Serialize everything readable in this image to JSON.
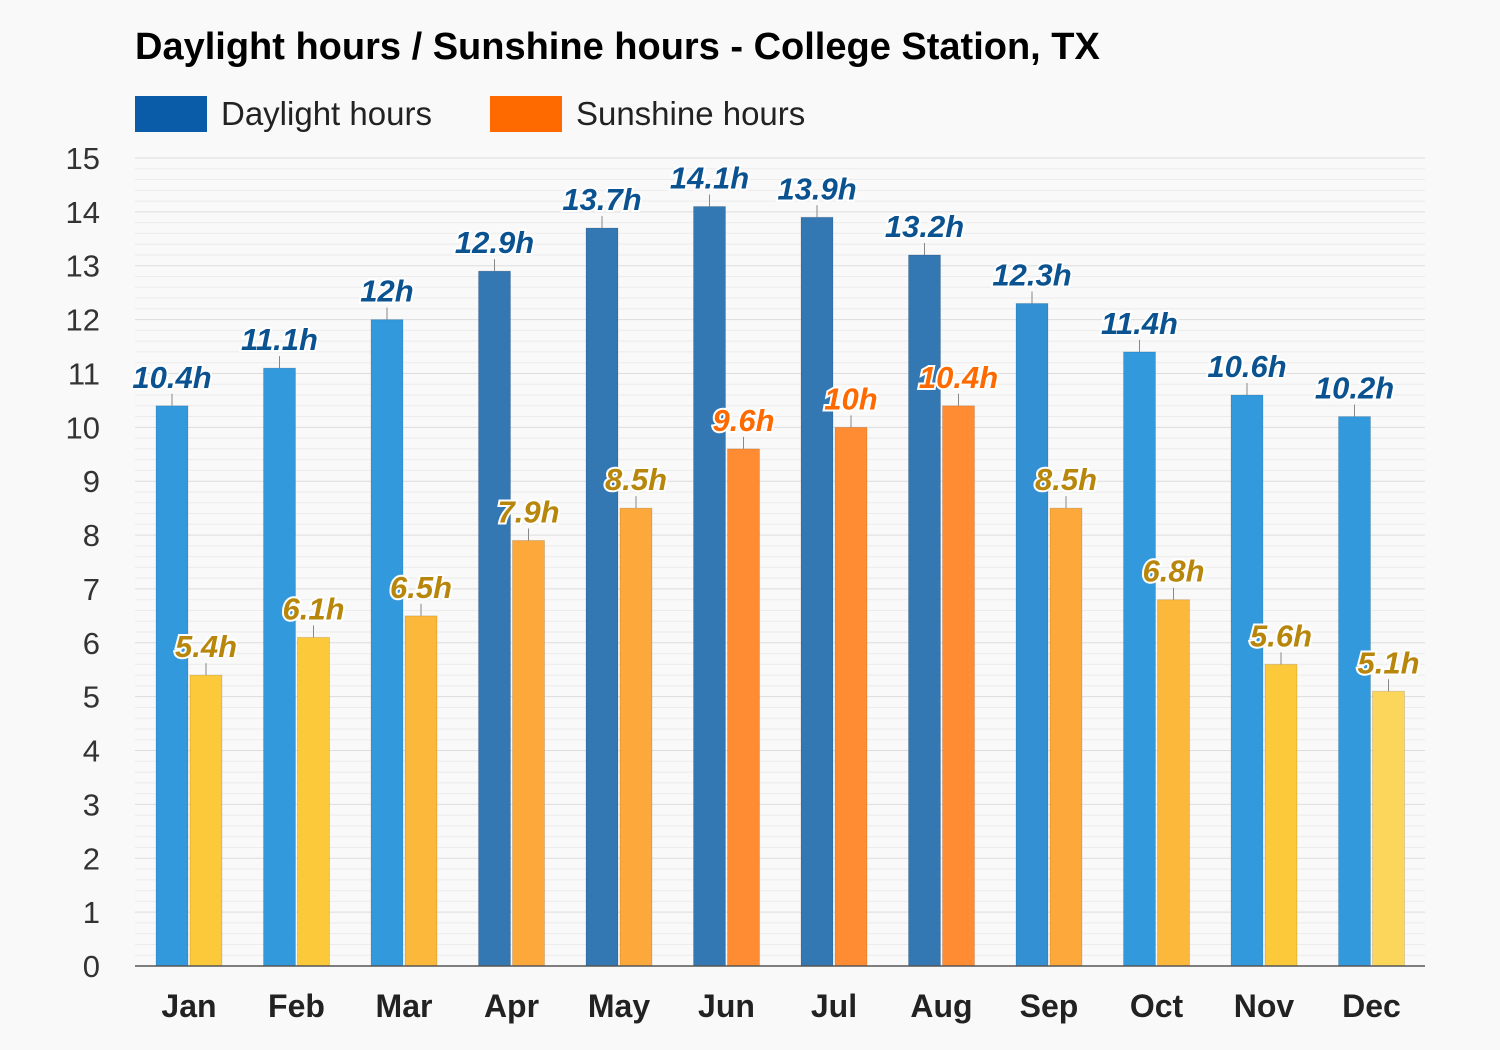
{
  "chart_data": {
    "type": "bar",
    "title": "Daylight hours / Sunshine hours - College Station, TX",
    "xlabel": "",
    "ylabel": "",
    "ylim": [
      0,
      15
    ],
    "yticks": [
      "0",
      "1",
      "2",
      "3",
      "4",
      "5",
      "6",
      "7",
      "8",
      "9",
      "10",
      "11",
      "12",
      "13",
      "14",
      "15"
    ],
    "grid": true,
    "legend_position": "top-left",
    "categories": [
      "Jan",
      "Feb",
      "Mar",
      "Apr",
      "May",
      "Jun",
      "Jul",
      "Aug",
      "Sep",
      "Oct",
      "Nov",
      "Dec"
    ],
    "series": [
      {
        "name": "Daylight hours",
        "legend_color": "#0a5ca8",
        "values": [
          10.4,
          11.1,
          12,
          12.9,
          13.7,
          14.1,
          13.9,
          13.2,
          12.3,
          11.4,
          10.6,
          10.2
        ],
        "labels": [
          "10.4h",
          "11.1h",
          "12h",
          "12.9h",
          "13.7h",
          "14.1h",
          "13.9h",
          "13.2h",
          "12.3h",
          "11.4h",
          "10.6h",
          "10.2h"
        ],
        "bar_colors": [
          "#3399dd",
          "#3399dd",
          "#3399dd",
          "#3377b3",
          "#3377b3",
          "#3377b3",
          "#3377b3",
          "#3377b3",
          "#3391d3",
          "#3399dd",
          "#3399dd",
          "#3399dd"
        ],
        "label_color": "#0a5390"
      },
      {
        "name": "Sunshine hours",
        "legend_color": "#ff6a00",
        "values": [
          5.4,
          6.1,
          6.5,
          7.9,
          8.5,
          9.6,
          10,
          10.4,
          8.5,
          6.8,
          5.6,
          5.1
        ],
        "labels": [
          "5.4h",
          "6.1h",
          "6.5h",
          "7.9h",
          "8.5h",
          "9.6h",
          "10h",
          "10.4h",
          "8.5h",
          "6.8h",
          "5.6h",
          "5.1h"
        ],
        "bar_colors": [
          "#fcc93a",
          "#fcc93a",
          "#fcb83a",
          "#fca83a",
          "#fca83a",
          "#ff8c33",
          "#ff8c33",
          "#ff8c33",
          "#fca83a",
          "#fcb83a",
          "#fcc93a",
          "#fcd65a"
        ],
        "label_colors": [
          "#b8860b",
          "#b8860b",
          "#b8860b",
          "#b8860b",
          "#b8860b",
          "#ff6a00",
          "#ff6a00",
          "#ff6a00",
          "#b8860b",
          "#b8860b",
          "#b8860b",
          "#b8860b"
        ]
      }
    ]
  }
}
